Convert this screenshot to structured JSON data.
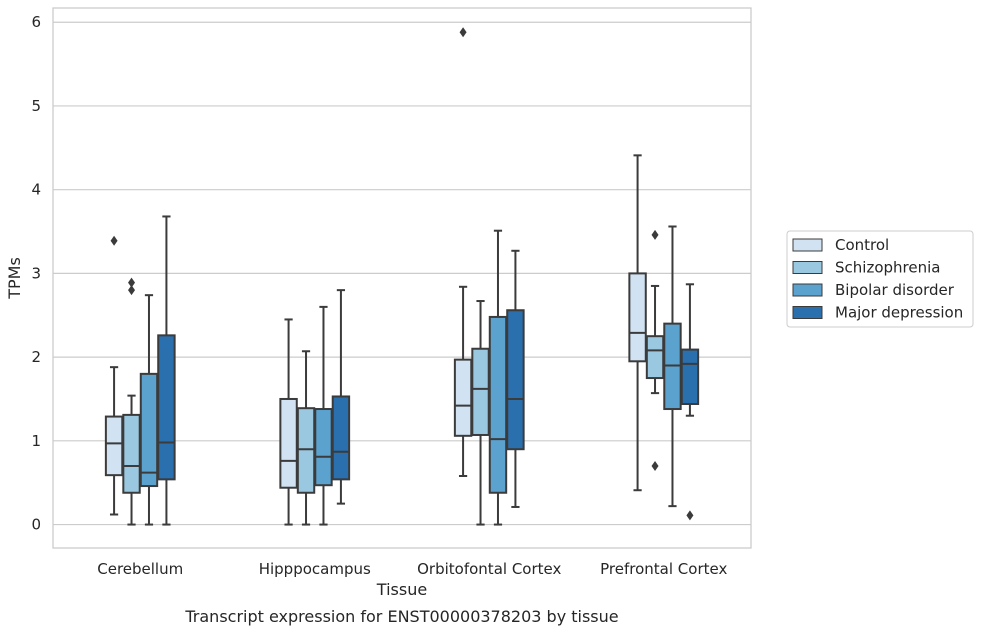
{
  "chart_data": {
    "type": "box",
    "title": "Transcript expression for ENST00000378203 by tissue",
    "xlabel": "Tissue",
    "ylabel": "TPMs",
    "ylim": [
      -0.28,
      6.17
    ],
    "yticks": [
      "0",
      "1",
      "2",
      "3",
      "4",
      "5",
      "6"
    ],
    "grid": true,
    "legend_position": "right",
    "categories": [
      "Cerebellum",
      "Hipppocampus",
      "Orbitofontal Cortex",
      "Prefrontal Cortex"
    ],
    "series": [
      {
        "name": "Control",
        "color": "#d1e2f2",
        "boxes": [
          {
            "whisker_low": 0.12,
            "q1": 0.59,
            "median": 0.97,
            "q3": 1.29,
            "whisker_high": 1.88,
            "outliers": [
              3.39
            ]
          },
          {
            "whisker_low": 0.0,
            "q1": 0.44,
            "median": 0.76,
            "q3": 1.5,
            "whisker_high": 2.45,
            "outliers": []
          },
          {
            "whisker_low": 0.58,
            "q1": 1.06,
            "median": 1.42,
            "q3": 1.97,
            "whisker_high": 2.84,
            "outliers": [
              5.88
            ]
          },
          {
            "whisker_low": 0.41,
            "q1": 1.95,
            "median": 2.29,
            "q3": 3.0,
            "whisker_high": 4.41,
            "outliers": []
          }
        ]
      },
      {
        "name": "Schizophrenia",
        "color": "#9ac8e0",
        "boxes": [
          {
            "whisker_low": 0.0,
            "q1": 0.38,
            "median": 0.7,
            "q3": 1.31,
            "whisker_high": 1.54,
            "outliers": [
              2.8,
              2.89
            ]
          },
          {
            "whisker_low": 0.0,
            "q1": 0.38,
            "median": 0.9,
            "q3": 1.39,
            "whisker_high": 2.07,
            "outliers": []
          },
          {
            "whisker_low": 0.0,
            "q1": 1.07,
            "median": 1.62,
            "q3": 2.1,
            "whisker_high": 2.67,
            "outliers": []
          },
          {
            "whisker_low": 1.57,
            "q1": 1.75,
            "median": 2.08,
            "q3": 2.25,
            "whisker_high": 2.85,
            "outliers": [
              3.46,
              0.7
            ]
          }
        ]
      },
      {
        "name": "Bipolar disorder",
        "color": "#5ba2cf",
        "boxes": [
          {
            "whisker_low": 0.0,
            "q1": 0.46,
            "median": 0.62,
            "q3": 1.8,
            "whisker_high": 2.74,
            "outliers": []
          },
          {
            "whisker_low": 0.0,
            "q1": 0.47,
            "median": 0.81,
            "q3": 1.38,
            "whisker_high": 2.6,
            "outliers": []
          },
          {
            "whisker_low": 0.0,
            "q1": 0.38,
            "median": 1.02,
            "q3": 2.48,
            "whisker_high": 3.51,
            "outliers": []
          },
          {
            "whisker_low": 0.22,
            "q1": 1.38,
            "median": 1.9,
            "q3": 2.4,
            "whisker_high": 3.56,
            "outliers": []
          }
        ]
      },
      {
        "name": "Major depression",
        "color": "#2a6fae",
        "boxes": [
          {
            "whisker_low": 0.0,
            "q1": 0.54,
            "median": 0.98,
            "q3": 2.26,
            "whisker_high": 3.68,
            "outliers": []
          },
          {
            "whisker_low": 0.25,
            "q1": 0.54,
            "median": 0.87,
            "q3": 1.53,
            "whisker_high": 2.8,
            "outliers": []
          },
          {
            "whisker_low": 0.21,
            "q1": 0.9,
            "median": 1.5,
            "q3": 2.56,
            "whisker_high": 3.27,
            "outliers": []
          },
          {
            "whisker_low": 1.3,
            "q1": 1.44,
            "median": 1.92,
            "q3": 2.09,
            "whisker_high": 2.87,
            "outliers": [
              0.11
            ]
          }
        ]
      }
    ]
  }
}
